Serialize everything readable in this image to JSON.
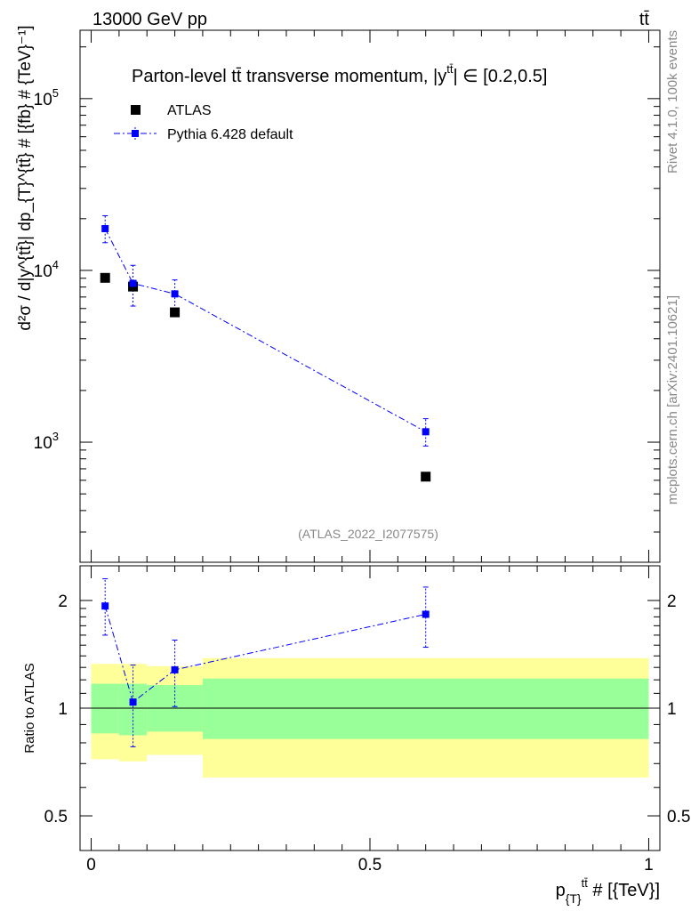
{
  "header": {
    "energy_label": "13000 GeV pp",
    "process_label": "tt̄"
  },
  "side_labels": {
    "rivet": "Rivet 4.1.0,  100k events",
    "mcplots": "mcplots.cern.ch [arXiv:2401.10621]"
  },
  "chart_data": [
    {
      "type": "scatter",
      "panel": "main",
      "title": "Parton-level t̄t transverse momentum, |y^{tt̄}| ∈ [0.2,0.5]",
      "title_text": "Parton-level tt̄ transverse momentum, |y",
      "title_sup": "tt̄",
      "title_tail": "| ∈ [0.2,0.5]",
      "ylabel": "d²σ / d|y^{tt̄}| dp_{T}^{tt̄} # [{fb} # {TeV}⁻¹]",
      "yscale": "log",
      "ylim": [
        200,
        250000
      ],
      "xlim": [
        -0.02,
        1.02
      ],
      "yticks": [
        {
          "value": 1000,
          "base": "10",
          "exp": "3"
        },
        {
          "value": 10000,
          "base": "10",
          "exp": "4"
        },
        {
          "value": 100000,
          "base": "10",
          "exp": "5"
        }
      ],
      "watermark": "(ATLAS_2022_I2077575)",
      "legend_position": "top-left",
      "series": [
        {
          "name": "ATLAS",
          "color": "#000000",
          "marker": "square",
          "x": [
            0.025,
            0.075,
            0.15,
            0.6
          ],
          "y": [
            9050,
            8050,
            5700,
            630
          ]
        },
        {
          "name": "Pythia 6.428 default",
          "color": "#0000ff",
          "marker": "square",
          "line": "dash-dot",
          "x": [
            0.025,
            0.075,
            0.15,
            0.6
          ],
          "y": [
            17500,
            8400,
            7300,
            1150
          ],
          "y_lo": [
            14500,
            6200,
            5900,
            950
          ],
          "y_hi": [
            20800,
            10700,
            8800,
            1370
          ]
        }
      ]
    },
    {
      "type": "scatter",
      "panel": "ratio",
      "ylabel": "Ratio to ATLAS",
      "xlabel": "p_{T}^{tt̄} # [{TeV}]",
      "xlabel_main": "p",
      "xlabel_sub": "{T}",
      "xlabel_sup": "tt̄",
      "xlabel_tail": " # [{TeV}]",
      "yscale": "log",
      "ylim": [
        0.4,
        2.5
      ],
      "xlim": [
        -0.02,
        1.02
      ],
      "xticks": [
        {
          "value": 0,
          "label": "0"
        },
        {
          "value": 0.5,
          "label": "0.5"
        },
        {
          "value": 1,
          "label": "1"
        }
      ],
      "yticks": [
        {
          "value": 0.5,
          "label": "0.5"
        },
        {
          "value": 1,
          "label": "1"
        },
        {
          "value": 2,
          "label": "2"
        }
      ],
      "bands": {
        "edges": [
          0.0,
          0.05,
          0.1,
          0.2,
          1.0
        ],
        "inner_lo": [
          0.85,
          0.84,
          0.86,
          0.82
        ],
        "inner_hi": [
          1.17,
          1.17,
          1.16,
          1.21
        ],
        "outer_lo": [
          0.72,
          0.71,
          0.74,
          0.64
        ],
        "outer_hi": [
          1.33,
          1.33,
          1.31,
          1.38
        ],
        "inner_color": "#99ff99",
        "outer_color": "#ffff99"
      },
      "series": [
        {
          "name": "Pythia 6.428 default",
          "color": "#0000ff",
          "x": [
            0.025,
            0.075,
            0.15,
            0.6
          ],
          "y": [
            1.93,
            1.04,
            1.28,
            1.83
          ],
          "y_lo": [
            1.6,
            0.78,
            1.01,
            1.48
          ],
          "y_hi": [
            2.3,
            1.32,
            1.55,
            2.18
          ]
        }
      ]
    }
  ]
}
